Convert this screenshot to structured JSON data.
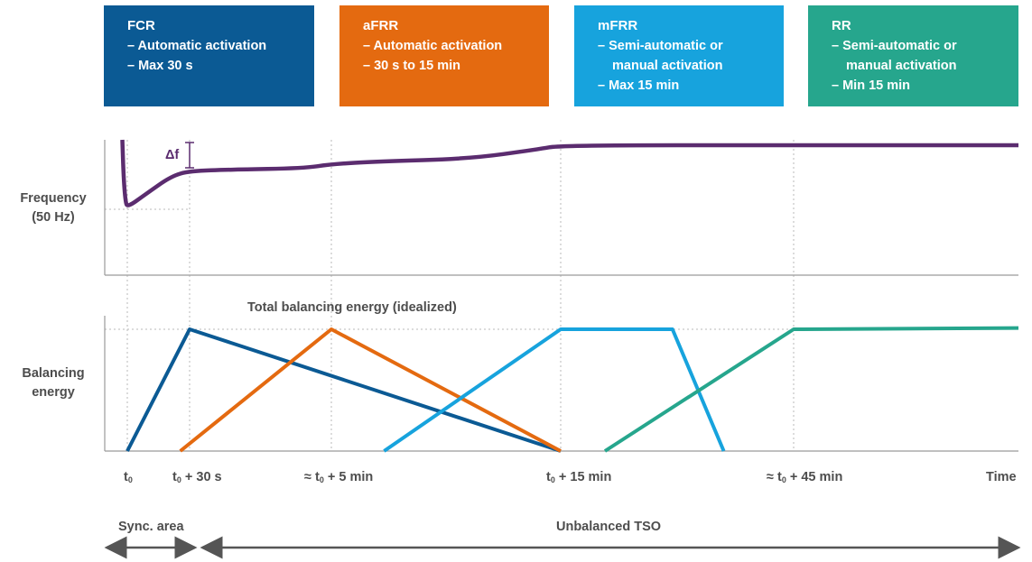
{
  "boxes": [
    {
      "title": "FCR",
      "lines": [
        "– Automatic activation",
        "– Max 30 s"
      ],
      "color": "#0b5a94"
    },
    {
      "title": "aFRR",
      "lines": [
        "– Automatic activation",
        "– 30 s to 15 min"
      ],
      "color": "#e46a10"
    },
    {
      "title": "mFRR",
      "lines": [
        "– Semi-automatic or",
        "manual activation",
        "– Max 15 min"
      ],
      "color": "#17a3dd"
    },
    {
      "title": "RR",
      "lines": [
        "– Semi-automatic or",
        "manual activation",
        "– Min 15 min"
      ],
      "color": "#26a68d"
    }
  ],
  "y_labels": {
    "frequency": [
      "Frequency",
      "(50 Hz)"
    ],
    "balancing": [
      "Balancing",
      "energy"
    ]
  },
  "x_ticks": [
    {
      "prefix": "t",
      "sub": "0",
      "suffix": ""
    },
    {
      "prefix": "t",
      "sub": "0",
      "suffix": " + 30 s"
    },
    {
      "prefix": "≈ t",
      "sub": "0",
      "suffix": " + 5 min"
    },
    {
      "prefix": "t",
      "sub": "0",
      "suffix": " + 15 min"
    },
    {
      "prefix": "≈ t",
      "sub": "0",
      "suffix": " + 45 min"
    },
    {
      "prefix": "Time",
      "sub": "",
      "suffix": ""
    }
  ],
  "annotations": {
    "delta_f": "Δf",
    "total_balancing": "Total balancing energy (idealized)"
  },
  "bottom": {
    "sync_area": "Sync. area",
    "unbalanced_tso": "Unbalanced TSO"
  },
  "colors": {
    "frequency_line": "#5b2c6f",
    "axis": "#9a9a9a",
    "grid": "#b8b8b8",
    "arrow": "#555555"
  },
  "chart_data": [
    {
      "type": "line",
      "title": "",
      "ylabel": "Frequency (50 Hz)",
      "x_ticks": [
        "t0",
        "t0 + 30 s",
        "≈ t0 + 5 min",
        "t0 + 15 min",
        "≈ t0 + 45 min",
        "Time"
      ],
      "x_positions": [
        0,
        1,
        2,
        3,
        4,
        5
      ],
      "ylim": [
        0,
        1
      ],
      "series": [
        {
          "name": "",
          "color": "#5b2c6f",
          "x": [
            -0.08,
            -0.06,
            -0.03,
            0,
            0.3,
            0.7,
            1.0,
            1.3,
            1.8,
            2.0,
            2.2,
            2.6,
            2.9,
            3.0,
            4.0,
            5.0
          ],
          "y": [
            1.0,
            0.72,
            0.55,
            0.5,
            0.6,
            0.73,
            0.77,
            0.78,
            0.79,
            0.82,
            0.84,
            0.86,
            0.93,
            0.96,
            0.96,
            0.96
          ]
        }
      ]
    },
    {
      "type": "line",
      "title": "Total balancing energy (idealized)",
      "ylabel": "Balancing energy",
      "x_ticks": [
        "t0",
        "t0 + 30 s",
        "≈ t0 + 5 min",
        "t0 + 15 min",
        "≈ t0 + 45 min",
        "Time"
      ],
      "x_positions": [
        0,
        1,
        2,
        3,
        4,
        5
      ],
      "ylim": [
        0,
        1.05
      ],
      "series": [
        {
          "name": "FCR",
          "color": "#0b5a94",
          "x": [
            0,
            1,
            3
          ],
          "y": [
            0,
            1,
            0
          ]
        },
        {
          "name": "aFRR",
          "color": "#e46a10",
          "x": [
            0.85,
            2,
            3
          ],
          "y": [
            0,
            1,
            0
          ]
        },
        {
          "name": "mFRR",
          "color": "#17a3dd",
          "x": [
            2.23,
            3,
            3.48,
            3.7
          ],
          "y": [
            0,
            1,
            1,
            0
          ]
        },
        {
          "name": "RR",
          "color": "#26a68d",
          "x": [
            3.19,
            4,
            5
          ],
          "y": [
            0,
            1,
            1.01
          ]
        }
      ]
    }
  ]
}
